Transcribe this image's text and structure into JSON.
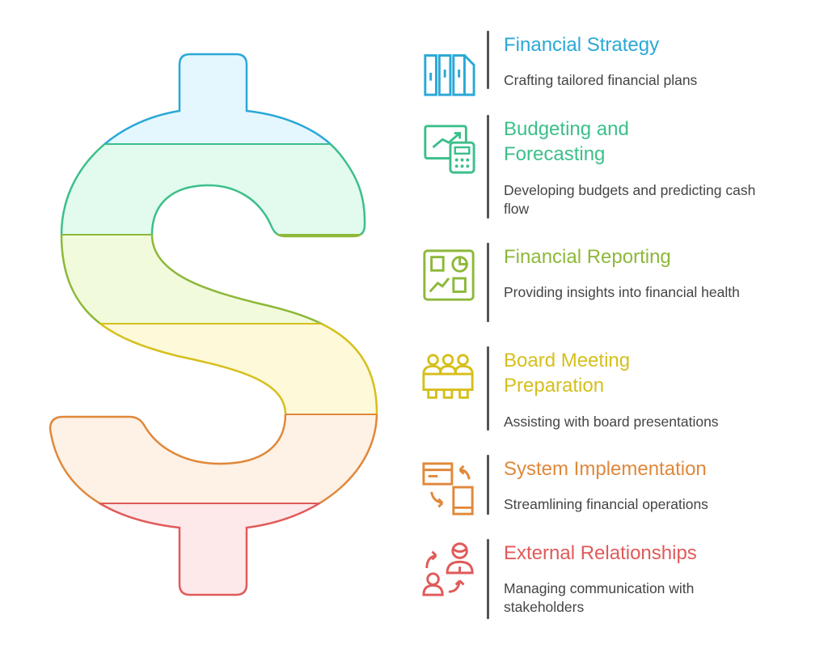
{
  "graphic": {
    "symbol": "dollar-sign"
  },
  "items": [
    {
      "title": "Financial Strategy",
      "description": "Crafting tailored financial plans",
      "icon": "book-stack-icon",
      "color": "#2aa8d8",
      "fill": "#e5f7fe"
    },
    {
      "title": "Budgeting and\nForecasting",
      "description": "Developing budgets and predicting cash flow",
      "icon": "chart-calculator-icon",
      "color": "#3cbf8a",
      "fill": "#e2fbee"
    },
    {
      "title": "Financial Reporting",
      "description": "Providing insights into financial health",
      "icon": "dashboard-report-icon",
      "color": "#8db83a",
      "fill": "#f1fbdc"
    },
    {
      "title": "Board Meeting\nPreparation",
      "description": "Assisting with board presentations",
      "icon": "meeting-table-icon",
      "color": "#d6bf1c",
      "fill": "#fdf9d9"
    },
    {
      "title": "System Implementation",
      "description": "Streamlining financial operations",
      "icon": "sync-devices-icon",
      "color": "#e0883a",
      "fill": "#fef1e5"
    },
    {
      "title": "External Relationships",
      "description": "Managing communication with stakeholders",
      "icon": "people-exchange-icon",
      "color": "#e05a5a",
      "fill": "#fde9e9"
    }
  ]
}
